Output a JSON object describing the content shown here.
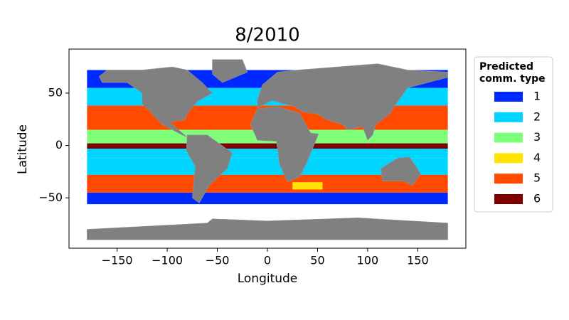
{
  "chart_data": {
    "type": "scatter",
    "title": "8/2010",
    "x_label": "Longitude",
    "y_label": "Latitude",
    "xlim": [
      -198,
      198
    ],
    "ylim": [
      -98,
      92
    ],
    "xticks": [
      {
        "value": -150,
        "label": "−150"
      },
      {
        "value": -100,
        "label": "−100"
      },
      {
        "value": -50,
        "label": "−50"
      },
      0,
      50,
      100,
      150
    ],
    "yticks": [
      {
        "value": -50,
        "label": "−50"
      },
      0,
      50
    ],
    "legend_title": [
      "Predicted",
      "comm. type"
    ],
    "legend_position": "outside right",
    "series": [
      {
        "name": "1",
        "color": "#0029ff"
      },
      {
        "name": "2",
        "color": "#00d5ff"
      },
      {
        "name": "3",
        "color": "#7dff7a"
      },
      {
        "name": "4",
        "color": "#ffe500"
      },
      {
        "name": "5",
        "color": "#ff4a00"
      },
      {
        "name": "6",
        "color": "#800000"
      }
    ]
  }
}
